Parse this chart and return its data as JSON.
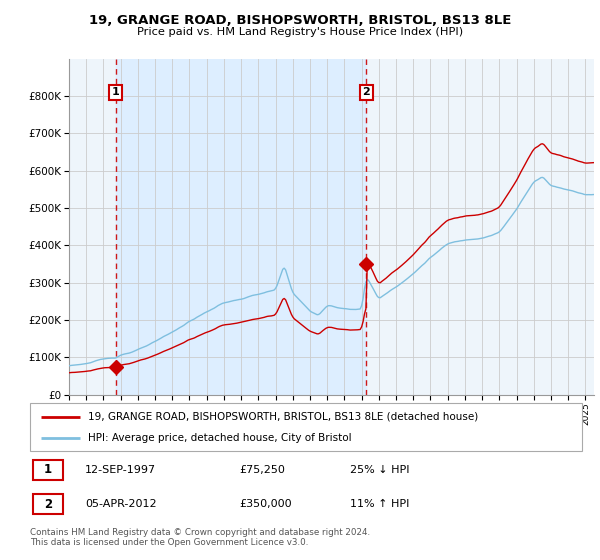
{
  "title1": "19, GRANGE ROAD, BISHOPSWORTH, BRISTOL, BS13 8LE",
  "title2": "Price paid vs. HM Land Registry's House Price Index (HPI)",
  "legend_line1": "19, GRANGE ROAD, BISHOPSWORTH, BRISTOL, BS13 8LE (detached house)",
  "legend_line2": "HPI: Average price, detached house, City of Bristol",
  "annotation1_date": "12-SEP-1997",
  "annotation1_price": "£75,250",
  "annotation1_hpi": "25% ↓ HPI",
  "annotation2_date": "05-APR-2012",
  "annotation2_price": "£350,000",
  "annotation2_hpi": "11% ↑ HPI",
  "footnote": "Contains HM Land Registry data © Crown copyright and database right 2024.\nThis data is licensed under the Open Government Licence v3.0.",
  "sale1_year": 1997.71,
  "sale1_value": 75250,
  "sale2_year": 2012.27,
  "sale2_value": 350000,
  "hpi_color": "#7fbfdf",
  "sale_color": "#cc0000",
  "annotation_box_color": "#cc0000",
  "grid_color": "#cccccc",
  "shade_color": "#ddeeff",
  "background_color": "#ffffff",
  "ylim": [
    0,
    900000
  ],
  "xlim_start": 1995.0,
  "xlim_end": 2025.5
}
